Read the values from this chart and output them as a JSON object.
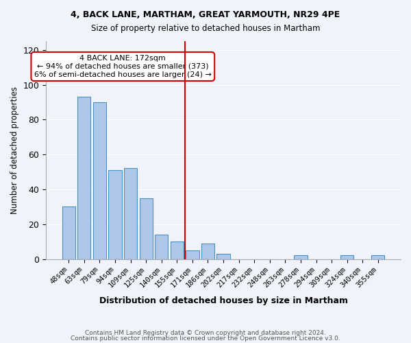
{
  "title1": "4, BACK LANE, MARTHAM, GREAT YARMOUTH, NR29 4PE",
  "title2": "Size of property relative to detached houses in Martham",
  "xlabel": "Distribution of detached houses by size in Martham",
  "ylabel": "Number of detached properties",
  "categories": [
    "48sqm",
    "63sqm",
    "79sqm",
    "94sqm",
    "109sqm",
    "125sqm",
    "140sqm",
    "155sqm",
    "171sqm",
    "186sqm",
    "202sqm",
    "217sqm",
    "232sqm",
    "248sqm",
    "263sqm",
    "278sqm",
    "294sqm",
    "309sqm",
    "324sqm",
    "340sqm",
    "355sqm"
  ],
  "values": [
    30,
    93,
    90,
    51,
    52,
    35,
    14,
    10,
    5,
    9,
    3,
    0,
    0,
    0,
    0,
    2,
    0,
    0,
    2,
    0,
    2
  ],
  "bar_color": "#aec6e8",
  "bar_edge_color": "#4a90c4",
  "vline_x": 8,
  "vline_color": "#cc0000",
  "annotation_text": "4 BACK LANE: 172sqm\n← 94% of detached houses are smaller (373)\n6% of semi-detached houses are larger (24) →",
  "annotation_box_color": "#ffffff",
  "annotation_box_edge": "#cc0000",
  "footer1": "Contains HM Land Registry data © Crown copyright and database right 2024.",
  "footer2": "Contains public sector information licensed under the Open Government Licence v3.0.",
  "ylim": [
    0,
    125
  ],
  "yticks": [
    0,
    20,
    40,
    60,
    80,
    100,
    120
  ],
  "bg_color": "#f0f4fa",
  "plot_bg_color": "#f0f4fa"
}
